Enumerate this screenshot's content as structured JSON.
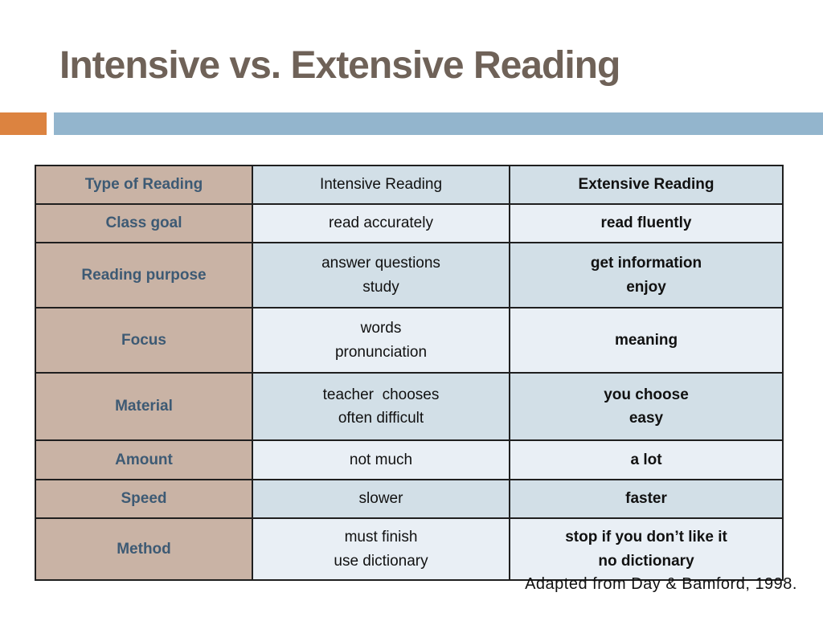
{
  "slide": {
    "title": "Intensive vs. Extensive Reading",
    "footer": "Adapted from Day & Bamford, 1998."
  },
  "table": {
    "header": {
      "type": "Type of Reading",
      "intensive": "Intensive Reading",
      "extensive": "Extensive Reading"
    },
    "rows": [
      {
        "label": "Class goal",
        "intensive": "read accurately",
        "extensive": "read fluently"
      },
      {
        "label": "Reading purpose",
        "intensive": "answer questions\nstudy",
        "extensive": "get information\nenjoy"
      },
      {
        "label": "Focus",
        "intensive": "words\npronunciation",
        "extensive": "meaning"
      },
      {
        "label": "Material",
        "intensive": "teacher  chooses\noften difficult",
        "extensive": "you choose\neasy"
      },
      {
        "label": "Amount",
        "intensive": "not much",
        "extensive": "a lot"
      },
      {
        "label": "Speed",
        "intensive": "slower",
        "extensive": "faster"
      },
      {
        "label": "Method",
        "intensive": "must finish\nuse dictionary",
        "extensive": "stop if you don’t like it\nno dictionary"
      }
    ]
  },
  "colors": {
    "accent_orange": "#dc8340",
    "accent_blue": "#93b5cd",
    "label_column_bg": "#c9b3a5",
    "row_dark_bg": "#d2dfe7",
    "row_light_bg": "#e9eff5",
    "label_text": "#3d5a74",
    "title_text": "#6f6258",
    "body_text": "#111111",
    "table_border": "#1f1f1f"
  }
}
